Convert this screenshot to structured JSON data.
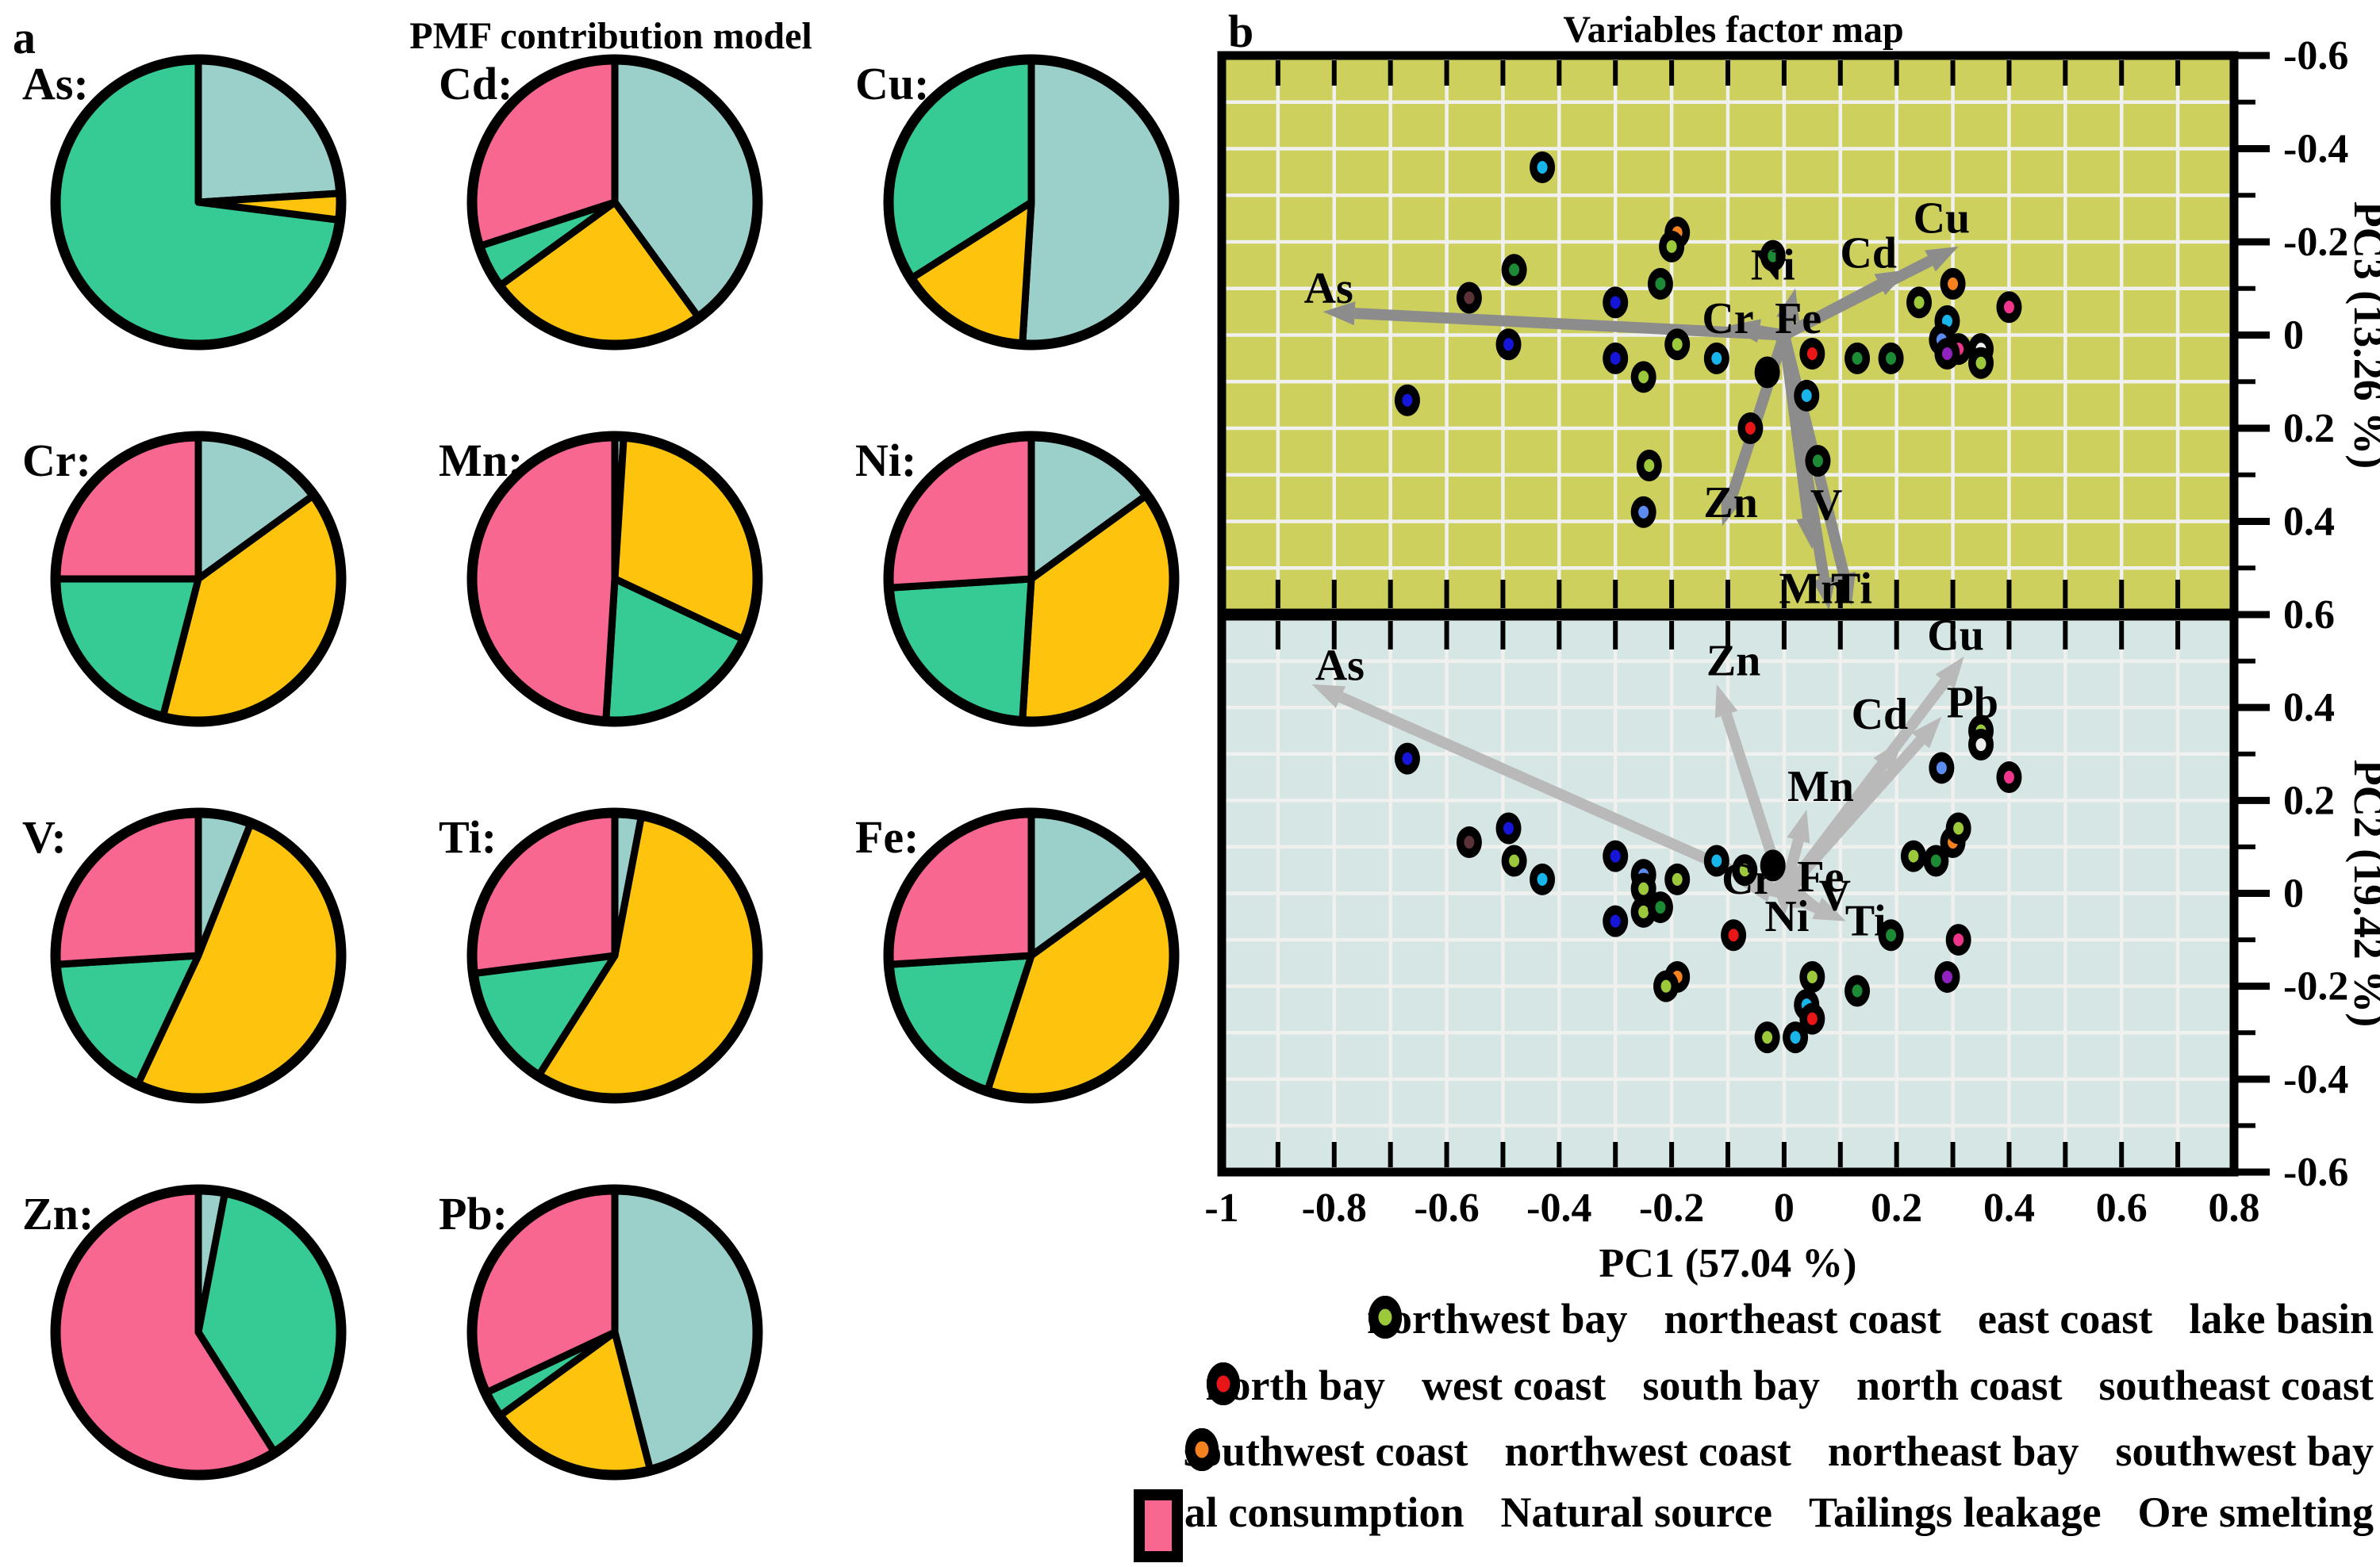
{
  "figure": {
    "panel_a": {
      "label": "a",
      "title": "PMF contribution model"
    },
    "panel_b": {
      "label": "b",
      "title": "Variables factor map"
    }
  },
  "source_colors": {
    "Coal consumption": "#9bcfca",
    "Natural source": "#fec40d",
    "Tailings leakage": "#36ca95",
    "Ore smelting": "#f8678f"
  },
  "group_colors": {
    "northwest bay": "#1d8a35",
    "northeast coast": "#18b5ea",
    "east coast": "#efefef",
    "lake basin": "#9cc83b",
    "north bay": "#f0368c",
    "west coast": "#5c8cf0",
    "south bay": "#1616d8",
    "north coast": "#9222c0",
    "southeast coast": "#e81616",
    "southwest coast": "#5a3238",
    "northwest coast": "#000000",
    "northeast bay": "#a8d5cf",
    "southwest bay": "#f5821e"
  },
  "legend_group_rows": [
    [
      "northwest bay",
      "northeast coast",
      "east coast",
      "lake basin"
    ],
    [
      "north bay",
      "west coast",
      "south bay",
      "north coast",
      "southeast coast"
    ],
    [
      "southwest coast",
      "northwest coast",
      "northeast bay",
      "southwest bay"
    ]
  ],
  "legend_sources": [
    "Coal consumption",
    "Natural source",
    "Tailings leakage",
    "Ore smelting"
  ],
  "chart_data": [
    {
      "type": "pie",
      "title": "PMF contribution model",
      "slice_order": [
        "Coal consumption",
        "Natural source",
        "Tailings leakage",
        "Ore smelting"
      ],
      "pies": [
        {
          "metal": "As:",
          "values": {
            "Coal consumption": 24,
            "Natural source": 3,
            "Tailings leakage": 73,
            "Ore smelting": 0
          }
        },
        {
          "metal": "Cd:",
          "values": {
            "Coal consumption": 40,
            "Natural source": 25,
            "Tailings leakage": 5,
            "Ore smelting": 30
          }
        },
        {
          "metal": "Cu:",
          "values": {
            "Coal consumption": 51,
            "Natural source": 15,
            "Tailings leakage": 34,
            "Ore smelting": 0
          }
        },
        {
          "metal": "Cr:",
          "values": {
            "Coal consumption": 15,
            "Natural source": 39,
            "Tailings leakage": 21,
            "Ore smelting": 25
          }
        },
        {
          "metal": "Mn:",
          "values": {
            "Coal consumption": 1,
            "Natural source": 31,
            "Tailings leakage": 19,
            "Ore smelting": 49
          }
        },
        {
          "metal": "Ni:",
          "values": {
            "Coal consumption": 15,
            "Natural source": 36,
            "Tailings leakage": 23,
            "Ore smelting": 26
          }
        },
        {
          "metal": "V:",
          "values": {
            "Coal consumption": 6,
            "Natural source": 51,
            "Tailings leakage": 17,
            "Ore smelting": 26
          }
        },
        {
          "metal": "Ti:",
          "values": {
            "Coal consumption": 3,
            "Natural source": 56,
            "Tailings leakage": 14,
            "Ore smelting": 27
          }
        },
        {
          "metal": "Fe:",
          "values": {
            "Coal consumption": 15,
            "Natural source": 40,
            "Tailings leakage": 19,
            "Ore smelting": 26
          }
        },
        {
          "metal": "Zn:",
          "values": {
            "Coal consumption": 3,
            "Natural source": 0,
            "Tailings leakage": 38,
            "Ore smelting": 59
          }
        },
        {
          "metal": "Pb:",
          "values": {
            "Coal consumption": 46,
            "Natural source": 19,
            "Tailings leakage": 3,
            "Ore smelting": 32
          }
        }
      ]
    },
    {
      "type": "scatter",
      "title": "Variables factor map",
      "xlabel": "PC1 (57.04 %)",
      "xlim": [
        -1,
        0.8
      ],
      "x_tick_labels": [
        "-1",
        "-0.8",
        "-0.6",
        "-0.4",
        "-0.2",
        "0",
        "0.2",
        "0.4",
        "0.6",
        "0.8"
      ],
      "panels": [
        {
          "id": "pc3",
          "ylabel": "PC3 (13.26 %)",
          "background": "#cdd05c",
          "arrow_color": "#8c8c8c",
          "y_top": -0.6,
          "y_bottom": 0.6,
          "y_ticks": [
            {
              "v": -0.6,
              "label": "-0.6"
            },
            {
              "v": -0.4,
              "label": "-0.4"
            },
            {
              "v": -0.2,
              "label": "-0.2"
            },
            {
              "v": 0,
              "label": "0"
            },
            {
              "v": 0.2,
              "label": "0.2"
            },
            {
              "v": 0.4,
              "label": "0.4"
            },
            {
              "v": 0.6,
              "label": "0.6"
            }
          ],
          "arrows": [
            {
              "label": "As",
              "x": -0.82,
              "y": -0.05,
              "lx": -0.81,
              "ly": -0.1
            },
            {
              "label": "Cu",
              "x": 0.31,
              "y": -0.19,
              "lx": 0.28,
              "ly": -0.25
            },
            {
              "label": "Cd",
              "x": 0.22,
              "y": -0.14,
              "lx": 0.15,
              "ly": -0.175
            },
            {
              "label": "Ni",
              "x": 0.02,
              "y": -0.1,
              "lx": -0.02,
              "ly": -0.15
            },
            {
              "label": "Cr",
              "x": -0.1,
              "y": -0.02,
              "lx": -0.1,
              "ly": -0.035
            },
            {
              "label": "Fe",
              "x": 0.03,
              "y": -0.03,
              "lx": 0.025,
              "ly": -0.035
            },
            {
              "label": "Zn",
              "x": -0.11,
              "y": 0.41,
              "lx": -0.095,
              "ly": 0.36
            },
            {
              "label": "V",
              "x": 0.05,
              "y": 0.46,
              "lx": 0.075,
              "ly": 0.365
            },
            {
              "label": "Mn",
              "x": 0.08,
              "y": 0.59,
              "lx": 0.05,
              "ly": 0.545
            },
            {
              "label": "Ti",
              "x": 0.12,
              "y": 0.58,
              "lx": 0.12,
              "ly": 0.545
            }
          ],
          "points": [
            {
              "group": "northeast coast",
              "x": -0.43,
              "y": -0.36
            },
            {
              "group": "southwest bay",
              "x": -0.19,
              "y": -0.22
            },
            {
              "group": "lake basin",
              "x": -0.2,
              "y": -0.19
            },
            {
              "group": "northwest bay",
              "x": -0.02,
              "y": -0.17
            },
            {
              "group": "northwest bay",
              "x": -0.48,
              "y": -0.14
            },
            {
              "group": "northwest bay",
              "x": -0.22,
              "y": -0.11
            },
            {
              "group": "southwest coast",
              "x": -0.56,
              "y": -0.08
            },
            {
              "group": "south bay",
              "x": -0.3,
              "y": -0.07
            },
            {
              "group": "lake basin",
              "x": 0.24,
              "y": -0.07
            },
            {
              "group": "southwest bay",
              "x": 0.3,
              "y": -0.11
            },
            {
              "group": "north bay",
              "x": 0.4,
              "y": -0.06
            },
            {
              "group": "northeast coast",
              "x": 0.29,
              "y": -0.03
            },
            {
              "group": "west coast",
              "x": 0.28,
              "y": 0.01
            },
            {
              "group": "north bay",
              "x": 0.31,
              "y": 0.03
            },
            {
              "group": "north coast",
              "x": 0.29,
              "y": 0.04
            },
            {
              "group": "east coast",
              "x": 0.35,
              "y": 0.03
            },
            {
              "group": "lake basin",
              "x": 0.35,
              "y": 0.06
            },
            {
              "group": "lake basin",
              "x": -0.19,
              "y": 0.02
            },
            {
              "group": "south bay",
              "x": -0.49,
              "y": 0.02
            },
            {
              "group": "south bay",
              "x": -0.3,
              "y": 0.05
            },
            {
              "group": "northeast coast",
              "x": -0.12,
              "y": 0.05
            },
            {
              "group": "lake basin",
              "x": -0.25,
              "y": 0.09
            },
            {
              "group": "northwest coast",
              "x": -0.03,
              "y": 0.08
            },
            {
              "group": "southeast coast",
              "x": 0.05,
              "y": 0.04
            },
            {
              "group": "northwest bay",
              "x": 0.13,
              "y": 0.05
            },
            {
              "group": "northwest bay",
              "x": 0.19,
              "y": 0.05
            },
            {
              "group": "south bay",
              "x": -0.67,
              "y": 0.14
            },
            {
              "group": "northeast coast",
              "x": 0.04,
              "y": 0.13
            },
            {
              "group": "southeast coast",
              "x": -0.06,
              "y": 0.2
            },
            {
              "group": "lake basin",
              "x": -0.24,
              "y": 0.28
            },
            {
              "group": "northwest bay",
              "x": 0.06,
              "y": 0.27
            },
            {
              "group": "west coast",
              "x": -0.25,
              "y": 0.38
            }
          ]
        },
        {
          "id": "pc2",
          "ylabel": "PC2 (19.42 %)",
          "background": "#d5e6e4",
          "arrow_color": "#b9b9b9",
          "y_top": 0.6,
          "y_bottom": -0.6,
          "y_ticks": [
            {
              "v": 0.4,
              "label": "0.4"
            },
            {
              "v": 0.2,
              "label": "0.2"
            },
            {
              "v": 0,
              "label": "0"
            },
            {
              "v": -0.2,
              "label": "-0.2"
            },
            {
              "v": -0.4,
              "label": "-0.4"
            },
            {
              "v": -0.6,
              "label": "-0.6"
            }
          ],
          "arrows": [
            {
              "label": "As",
              "x": -0.84,
              "y": 0.45,
              "lx": -0.79,
              "ly": 0.49
            },
            {
              "label": "Zn",
              "x": -0.12,
              "y": 0.45,
              "lx": -0.09,
              "ly": 0.5
            },
            {
              "label": "Cu",
              "x": 0.32,
              "y": 0.51,
              "lx": 0.305,
              "ly": 0.555
            },
            {
              "label": "Pb",
              "x": 0.28,
              "y": 0.38,
              "lx": 0.335,
              "ly": 0.41
            },
            {
              "label": "Cd",
              "x": 0.21,
              "y": 0.33,
              "lx": 0.17,
              "ly": 0.385
            },
            {
              "label": "Mn",
              "x": 0.04,
              "y": 0.18,
              "lx": 0.065,
              "ly": 0.23
            },
            {
              "label": "Fe",
              "x": 0.04,
              "y": 0.03,
              "lx": 0.065,
              "ly": 0.035
            },
            {
              "label": "Cr",
              "x": -0.08,
              "y": 0.02,
              "lx": -0.065,
              "ly": 0.03
            },
            {
              "label": "V",
              "x": 0.07,
              "y": -0.03,
              "lx": 0.09,
              "ly": -0.005
            },
            {
              "label": "Ni",
              "x": 0,
              "y": -0.05,
              "lx": 0.005,
              "ly": -0.05
            },
            {
              "label": "Ti",
              "x": 0.11,
              "y": -0.06,
              "lx": 0.145,
              "ly": -0.06
            }
          ],
          "points": [
            {
              "group": "south bay",
              "x": -0.67,
              "y": 0.29
            },
            {
              "group": "south bay",
              "x": -0.49,
              "y": 0.14
            },
            {
              "group": "southwest coast",
              "x": -0.56,
              "y": 0.11
            },
            {
              "group": "lake basin",
              "x": -0.48,
              "y": 0.07
            },
            {
              "group": "northeast coast",
              "x": -0.43,
              "y": 0.03
            },
            {
              "group": "south bay",
              "x": -0.3,
              "y": 0.08
            },
            {
              "group": "west coast",
              "x": -0.25,
              "y": 0.04
            },
            {
              "group": "lake basin",
              "x": -0.25,
              "y": 0.01
            },
            {
              "group": "lake basin",
              "x": -0.19,
              "y": 0.03
            },
            {
              "group": "lake basin",
              "x": -0.25,
              "y": -0.04
            },
            {
              "group": "northwest bay",
              "x": -0.22,
              "y": -0.03
            },
            {
              "group": "south bay",
              "x": -0.3,
              "y": -0.06
            },
            {
              "group": "northeast coast",
              "x": -0.12,
              "y": 0.07
            },
            {
              "group": "lake basin",
              "x": -0.07,
              "y": 0.05
            },
            {
              "group": "northwest coast",
              "x": -0.02,
              "y": 0.06
            },
            {
              "group": "southeast coast",
              "x": -0.09,
              "y": -0.09
            },
            {
              "group": "southwest bay",
              "x": -0.19,
              "y": -0.18
            },
            {
              "group": "lake basin",
              "x": -0.21,
              "y": -0.2
            },
            {
              "group": "lake basin",
              "x": 0.05,
              "y": -0.18
            },
            {
              "group": "northwest bay",
              "x": 0.13,
              "y": -0.21
            },
            {
              "group": "northeast coast",
              "x": 0.04,
              "y": -0.24
            },
            {
              "group": "southeast coast",
              "x": 0.05,
              "y": -0.27
            },
            {
              "group": "lake basin",
              "x": -0.03,
              "y": -0.31
            },
            {
              "group": "northeast coast",
              "x": 0.02,
              "y": -0.31
            },
            {
              "group": "northwest bay",
              "x": 0.19,
              "y": -0.09
            },
            {
              "group": "north bay",
              "x": 0.31,
              "y": -0.1
            },
            {
              "group": "north coast",
              "x": 0.29,
              "y": -0.18
            },
            {
              "group": "lake basin",
              "x": 0.23,
              "y": 0.08
            },
            {
              "group": "northwest bay",
              "x": 0.27,
              "y": 0.07
            },
            {
              "group": "southwest bay",
              "x": 0.3,
              "y": 0.11
            },
            {
              "group": "lake basin",
              "x": 0.31,
              "y": 0.14
            },
            {
              "group": "west coast",
              "x": 0.28,
              "y": 0.27
            },
            {
              "group": "lake basin",
              "x": 0.35,
              "y": 0.35
            },
            {
              "group": "east coast",
              "x": 0.35,
              "y": 0.32
            },
            {
              "group": "north bay",
              "x": 0.4,
              "y": 0.25
            }
          ]
        }
      ]
    }
  ]
}
